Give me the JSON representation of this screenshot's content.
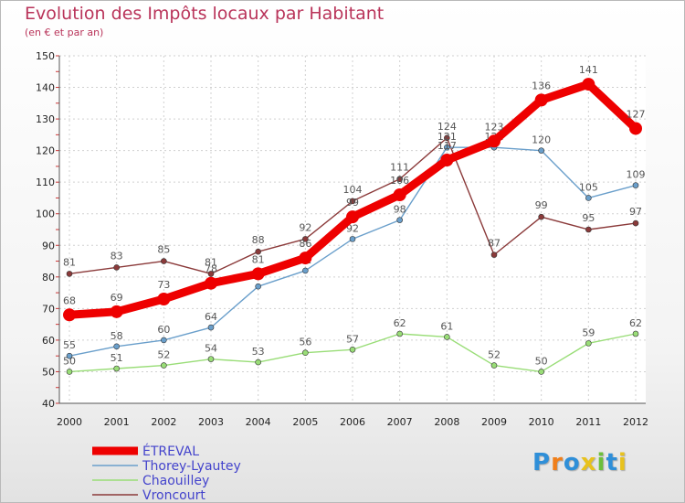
{
  "chart_data": {
    "type": "line",
    "title": "Evolution des Impôts locaux par Habitant",
    "subtitle": "(en € et par an)",
    "x": [
      "2000",
      "2001",
      "2002",
      "2003",
      "2004",
      "2005",
      "2006",
      "2007",
      "2008",
      "2009",
      "2010",
      "2011",
      "2012"
    ],
    "ylim": [
      40,
      150
    ],
    "yticks": [
      40,
      50,
      60,
      70,
      80,
      90,
      100,
      110,
      120,
      130,
      140,
      150
    ],
    "series": [
      {
        "name": "ÉTREVAL",
        "color": "#ee0000",
        "values": [
          68,
          69,
          73,
          78,
          81,
          86,
          99,
          106,
          117,
          123,
          136,
          141,
          127
        ]
      },
      {
        "name": "Thorey-Lyautey",
        "color": "#6a9fcb",
        "values": [
          55,
          58,
          60,
          64,
          77,
          82,
          92,
          98,
          121,
          121,
          120,
          105,
          109
        ]
      },
      {
        "name": "Chaouilley",
        "color": "#99dd77",
        "values": [
          50,
          51,
          52,
          54,
          53,
          56,
          57,
          62,
          61,
          52,
          50,
          59,
          62
        ]
      },
      {
        "name": "Vroncourt",
        "color": "#8b3a3a",
        "values": [
          81,
          83,
          85,
          81,
          88,
          92,
          104,
          111,
          124,
          87,
          99,
          95,
          97
        ]
      }
    ]
  },
  "logo": {
    "letters": [
      "P",
      "r",
      "o",
      "x",
      "i",
      "t",
      "i"
    ],
    "colors": [
      "#2f8fd8",
      "#f07f1a",
      "#2f8fd8",
      "#e8c21d",
      "#6cbf3a",
      "#2f8fd8",
      "#e8c21d"
    ]
  }
}
